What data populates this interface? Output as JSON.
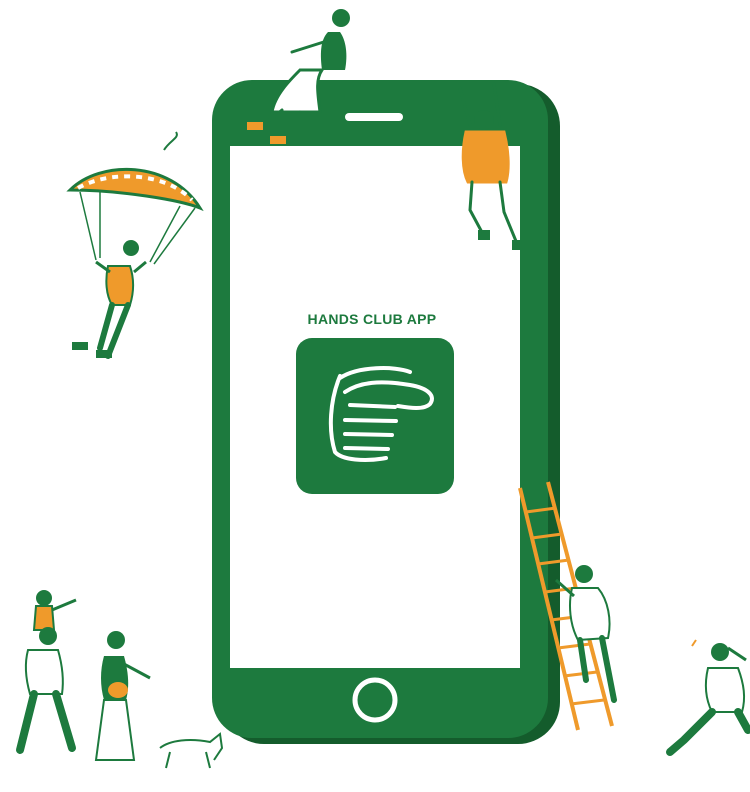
{
  "app": {
    "title": "HANDS CLUB APP",
    "icon": "pointing-hand-icon"
  },
  "colors": {
    "green": "#1d7a3e",
    "dark_green": "#145c2c",
    "orange": "#ef9a2b",
    "white": "#ffffff"
  }
}
